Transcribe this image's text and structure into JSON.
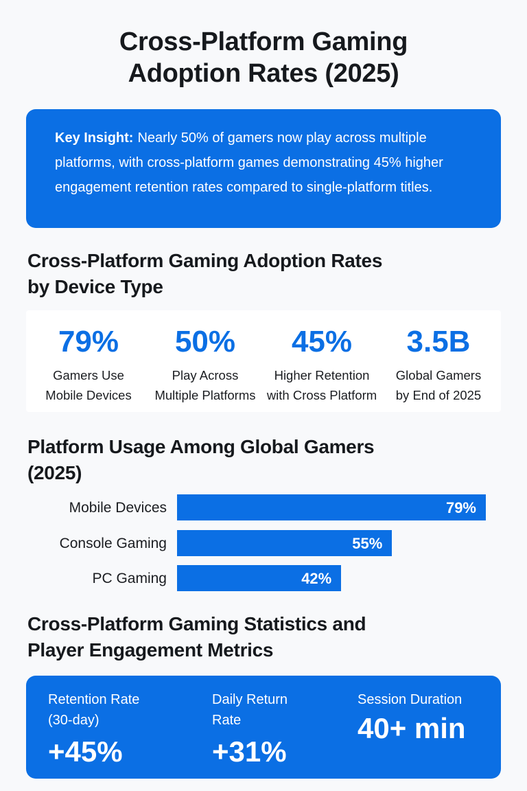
{
  "title_line1": "Cross-Platform Gaming",
  "title_line2": "Adoption Rates (2025)",
  "insight": {
    "label": "Key Insight:",
    "text": "Nearly 50% of gamers now play across multiple platforms, with cross-platform games demonstrating 45% higher engagement retention rates compared to single-platform titles."
  },
  "sections": {
    "adoption_heading_line1": "Cross-Platform Gaming Adoption Rates",
    "adoption_heading_line2": "by Device Type",
    "usage_heading_line1": "Platform Usage Among Global Gamers",
    "usage_heading_line2": "(2025)",
    "metrics_heading_line1": "Cross-Platform Gaming Statistics and",
    "metrics_heading_line2": "Player Engagement Metrics"
  },
  "stats": [
    {
      "value": "79%",
      "label_line1": "Gamers Use",
      "label_line2": "Mobile Devices"
    },
    {
      "value": "50%",
      "label_line1": "Play Across",
      "label_line2": "Multiple Platforms"
    },
    {
      "value": "45%",
      "label_line1": "Higher Retention",
      "label_line2": "with Cross Platform"
    },
    {
      "value": "3.5B",
      "label_line1": "Global Gamers",
      "label_line2": "by End of 2025"
    }
  ],
  "metrics": [
    {
      "label_line1": "Retention Rate",
      "label_line2": "(30-day)",
      "value": "+45%"
    },
    {
      "label_line1": "Daily Return",
      "label_line2": "Rate",
      "value": "+31%"
    },
    {
      "label_line1": "Session Duration",
      "label_line2": "",
      "value": "40+ min"
    }
  ],
  "colors": {
    "accent": "#0b6fe4",
    "background": "#f8f9fb",
    "text": "#16191d"
  },
  "chart_data": {
    "type": "bar",
    "orientation": "horizontal",
    "title": "Platform Usage Among Global Gamers (2025)",
    "categories": [
      "Mobile Devices",
      "Console Gaming",
      "PC Gaming"
    ],
    "values": [
      79,
      55,
      42
    ],
    "value_labels": [
      "79%",
      "55%",
      "42%"
    ],
    "xlabel": "",
    "ylabel": "",
    "xlim": [
      0,
      79
    ],
    "unit": "%",
    "grid": false,
    "legend": null
  }
}
